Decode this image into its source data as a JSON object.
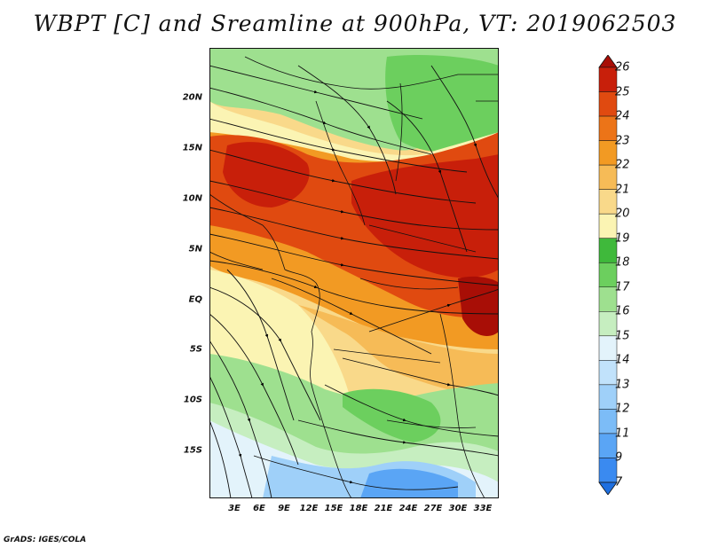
{
  "title": "WBPT [C] and Sreamline at 900hPa, VT: 2019062503",
  "footer": "GrADS: IGES/COLA",
  "map": {
    "lat_range": [
      -20,
      24.5
    ],
    "lon_range": [
      0,
      35.5
    ],
    "lat_ticks": [
      {
        "value": 20,
        "label": "20N"
      },
      {
        "value": 15,
        "label": "15N"
      },
      {
        "value": 10,
        "label": "10N"
      },
      {
        "value": 5,
        "label": "5N"
      },
      {
        "value": 0,
        "label": "EQ"
      },
      {
        "value": -5,
        "label": "5S"
      },
      {
        "value": -10,
        "label": "10S"
      },
      {
        "value": -15,
        "label": "15S"
      }
    ],
    "lon_ticks": [
      {
        "value": 3,
        "label": "3E"
      },
      {
        "value": 6,
        "label": "6E"
      },
      {
        "value": 9,
        "label": "9E"
      },
      {
        "value": 12,
        "label": "12E"
      },
      {
        "value": 15,
        "label": "15E"
      },
      {
        "value": 18,
        "label": "18E"
      },
      {
        "value": 21,
        "label": "21E"
      },
      {
        "value": 24,
        "label": "24E"
      },
      {
        "value": 27,
        "label": "27E"
      },
      {
        "value": 30,
        "label": "30E"
      },
      {
        "value": 33,
        "label": "33E"
      }
    ]
  },
  "colorbar": {
    "levels": [
      "7",
      "9",
      "11",
      "12",
      "13",
      "14",
      "15",
      "16",
      "17",
      "18",
      "19",
      "20",
      "21",
      "22",
      "23",
      "24",
      "25",
      "26"
    ],
    "colors": [
      "#1e6fe0",
      "#3a8af0",
      "#5aa5f5",
      "#7cbcf7",
      "#9fd0f9",
      "#c1e2fb",
      "#e3f3fb",
      "#c6eec0",
      "#9ee08f",
      "#6ccf5e",
      "#3fb93b",
      "#fbf4b3",
      "#f9d98a",
      "#f6bb57",
      "#f29a23",
      "#ec7418",
      "#e04a10",
      "#c81f0a",
      "#a80e06"
    ]
  }
}
